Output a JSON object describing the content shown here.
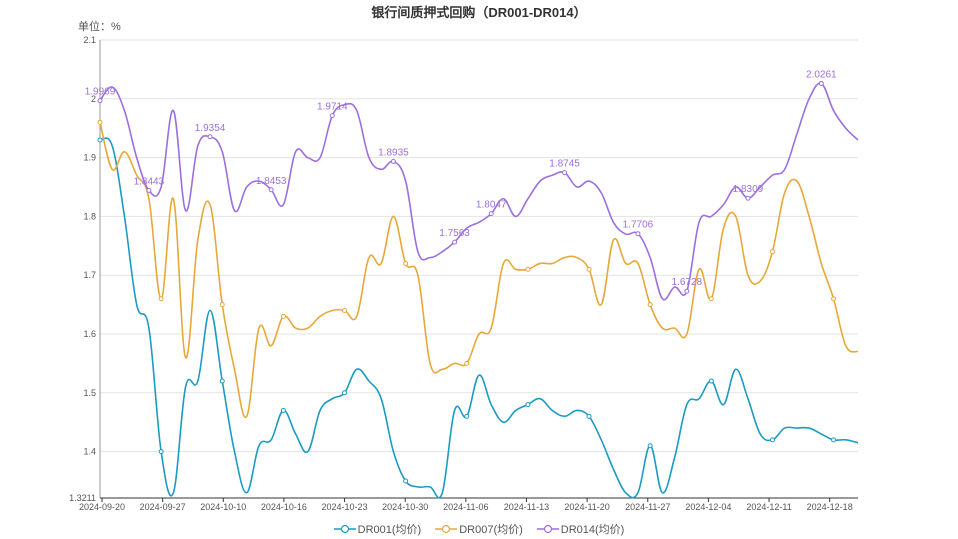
{
  "chart_data": {
    "type": "line",
    "title": "银行间质押式回购（DR001-DR014）",
    "unit_label": "单位：%",
    "ylim": [
      1.3211,
      2.1
    ],
    "y_ticks": [
      "1.3211",
      "1.4",
      "1.5",
      "1.6",
      "1.7",
      "1.8",
      "1.9",
      "2",
      "2.1"
    ],
    "x_ticks": [
      "2024-09-20",
      "2024-09-27",
      "2024-10-10",
      "2024-10-16",
      "2024-10-23",
      "2024-10-30",
      "2024-11-06",
      "2024-11-13",
      "2024-11-20",
      "2024-11-27",
      "2024-12-04",
      "2024-12-11",
      "2024-12-18"
    ],
    "x_range": [
      0,
      62
    ],
    "grid": true,
    "legend_position": "bottom",
    "series": [
      {
        "name": "DR001(均价)",
        "color": "#1a9bc4",
        "x": [
          0,
          1,
          2,
          3,
          4,
          5,
          6,
          7,
          8,
          9,
          10,
          11,
          12,
          13,
          14,
          15,
          16,
          17,
          18,
          19,
          20,
          21,
          22,
          23,
          24,
          25,
          26,
          27,
          28,
          29,
          30,
          31,
          32,
          33,
          34,
          35,
          36,
          37,
          38,
          39,
          40,
          41,
          42,
          43,
          44,
          45,
          46,
          47,
          48,
          49,
          50,
          51,
          52,
          53,
          54,
          55,
          56,
          57,
          58,
          59,
          60,
          61,
          62
        ],
        "values": [
          1.93,
          1.92,
          1.8,
          1.65,
          1.61,
          1.4,
          1.33,
          1.51,
          1.52,
          1.64,
          1.52,
          1.4,
          1.33,
          1.41,
          1.42,
          1.47,
          1.43,
          1.4,
          1.47,
          1.49,
          1.5,
          1.54,
          1.52,
          1.49,
          1.4,
          1.35,
          1.34,
          1.34,
          1.33,
          1.47,
          1.46,
          1.53,
          1.48,
          1.45,
          1.47,
          1.48,
          1.49,
          1.47,
          1.46,
          1.47,
          1.46,
          1.42,
          1.37,
          1.33,
          1.33,
          1.41,
          1.33,
          1.39,
          1.48,
          1.49,
          1.52,
          1.48,
          1.54,
          1.49,
          1.43,
          1.42,
          1.44,
          1.44,
          1.44,
          1.43,
          1.42,
          1.42,
          1.415
        ],
        "markers": [
          0,
          5,
          10,
          15,
          20,
          25,
          30,
          35,
          40,
          45,
          50,
          55,
          60
        ],
        "labels": []
      },
      {
        "name": "DR007(均价)",
        "color": "#e8a838",
        "x": [
          0,
          1,
          2,
          3,
          4,
          5,
          6,
          7,
          8,
          9,
          10,
          11,
          12,
          13,
          14,
          15,
          16,
          17,
          18,
          19,
          20,
          21,
          22,
          23,
          24,
          25,
          26,
          27,
          28,
          29,
          30,
          31,
          32,
          33,
          34,
          35,
          36,
          37,
          38,
          39,
          40,
          41,
          42,
          43,
          44,
          45,
          46,
          47,
          48,
          49,
          50,
          51,
          52,
          53,
          54,
          55,
          56,
          57,
          58,
          59,
          60,
          61,
          62
        ],
        "values": [
          1.96,
          1.88,
          1.91,
          1.87,
          1.83,
          1.66,
          1.83,
          1.56,
          1.76,
          1.82,
          1.65,
          1.54,
          1.46,
          1.61,
          1.58,
          1.63,
          1.61,
          1.61,
          1.63,
          1.64,
          1.64,
          1.63,
          1.73,
          1.72,
          1.8,
          1.72,
          1.7,
          1.55,
          1.54,
          1.55,
          1.55,
          1.6,
          1.61,
          1.72,
          1.71,
          1.71,
          1.72,
          1.72,
          1.73,
          1.73,
          1.71,
          1.65,
          1.76,
          1.72,
          1.72,
          1.65,
          1.61,
          1.61,
          1.6,
          1.71,
          1.66,
          1.78,
          1.8,
          1.7,
          1.69,
          1.74,
          1.84,
          1.86,
          1.8,
          1.72,
          1.66,
          1.58,
          1.57
        ],
        "markers": [
          0,
          5,
          10,
          15,
          20,
          25,
          30,
          35,
          40,
          45,
          50,
          55,
          60
        ],
        "labels": []
      },
      {
        "name": "DR014(均价)",
        "color": "#9c6fe0",
        "x": [
          0,
          1,
          2,
          3,
          4,
          5,
          6,
          7,
          8,
          9,
          10,
          11,
          12,
          13,
          14,
          15,
          16,
          17,
          18,
          19,
          20,
          21,
          22,
          23,
          24,
          25,
          26,
          27,
          28,
          29,
          30,
          31,
          32,
          33,
          34,
          35,
          36,
          37,
          38,
          39,
          40,
          41,
          42,
          43,
          44,
          45,
          46,
          47,
          48,
          49,
          50,
          51,
          52,
          53,
          54,
          55,
          56,
          57,
          58,
          59,
          60,
          61,
          62
        ],
        "values": [
          1.9969,
          2.02,
          1.98,
          1.9,
          1.8443,
          1.85,
          1.98,
          1.81,
          1.92,
          1.9354,
          1.91,
          1.81,
          1.85,
          1.86,
          1.8453,
          1.82,
          1.91,
          1.9,
          1.9,
          1.9714,
          1.99,
          1.98,
          1.9,
          1.88,
          1.8935,
          1.86,
          1.74,
          1.73,
          1.74,
          1.7563,
          1.78,
          1.79,
          1.8047,
          1.83,
          1.8,
          1.83,
          1.86,
          1.87,
          1.8745,
          1.85,
          1.86,
          1.84,
          1.79,
          1.77,
          1.7706,
          1.73,
          1.66,
          1.68,
          1.6728,
          1.79,
          1.8,
          1.82,
          1.85,
          1.8309,
          1.85,
          1.87,
          1.88,
          1.94,
          2.0,
          2.0261,
          1.98,
          1.95,
          1.93
        ],
        "markers": [
          0,
          4,
          9,
          14,
          19,
          24,
          29,
          32,
          38,
          44,
          48,
          53,
          59
        ],
        "labels": [
          {
            "x": 0,
            "text": "1.9969"
          },
          {
            "x": 4,
            "text": "1.8443"
          },
          {
            "x": 9,
            "text": "1.9354"
          },
          {
            "x": 14,
            "text": "1.8453"
          },
          {
            "x": 19,
            "text": "1.9714"
          },
          {
            "x": 24,
            "text": "1.8935"
          },
          {
            "x": 29,
            "text": "1.7563"
          },
          {
            "x": 32,
            "text": "1.8047"
          },
          {
            "x": 38,
            "text": "1.8745"
          },
          {
            "x": 44,
            "text": "1.7706"
          },
          {
            "x": 48,
            "text": "1.6728"
          },
          {
            "x": 53,
            "text": "1.8309"
          },
          {
            "x": 59,
            "text": "2.0261"
          }
        ]
      }
    ]
  }
}
